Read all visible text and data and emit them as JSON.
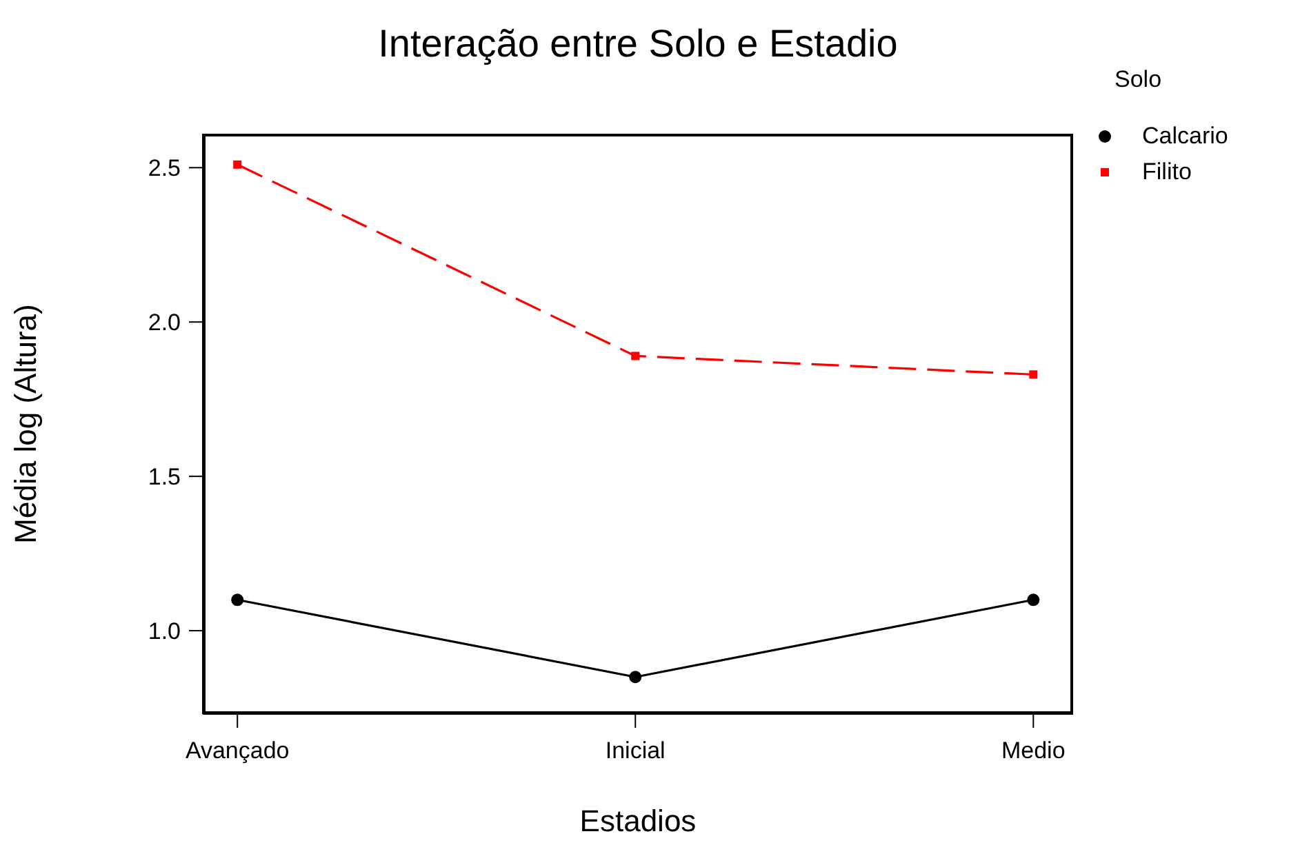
{
  "chart_data": {
    "type": "line",
    "title": "Interação entre Solo e Estadio",
    "xlabel": "Estadios",
    "ylabel": "Média log (Altura)",
    "legend_title": "Solo",
    "legend": "right",
    "grid": false,
    "categories": [
      "Avançado",
      "Inicial",
      "Medio"
    ],
    "ylim": [
      0.73,
      2.61
    ],
    "yticks": [
      {
        "value": 1.0,
        "label": "1.0"
      },
      {
        "value": 1.5,
        "label": "1.5"
      },
      {
        "value": 2.0,
        "label": "2.0"
      },
      {
        "value": 2.5,
        "label": "2.5"
      }
    ],
    "series": [
      {
        "name": "Calcario",
        "color": "#000000",
        "marker": "circle",
        "line_style": "solid",
        "values": [
          1.1,
          0.85,
          1.1
        ]
      },
      {
        "name": "Filito",
        "color": "#ff0000",
        "marker": "square",
        "line_style": "dashed",
        "values": [
          2.51,
          1.89,
          1.83
        ]
      }
    ]
  }
}
